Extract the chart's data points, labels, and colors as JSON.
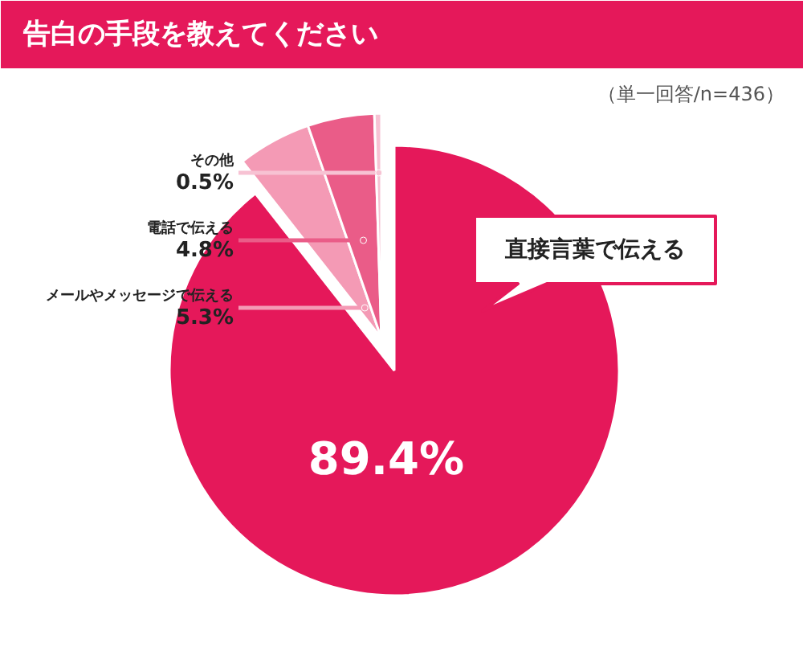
{
  "chart_data": {
    "type": "pie",
    "title": "告白の手段を教えてください",
    "subtitle": "（単一回答/n=436）",
    "categories": [
      "直接言葉で伝える",
      "メールやメッセージで伝える",
      "電話で伝える",
      "その他"
    ],
    "values": [
      89.4,
      5.3,
      4.8,
      0.5
    ],
    "colors": [
      "#e5185a",
      "#f49ab5",
      "#ea5c88",
      "#f7c2d3"
    ],
    "value_labels": [
      "89.4%",
      "5.3%",
      "4.8%",
      "0.5%"
    ],
    "legend": false
  }
}
